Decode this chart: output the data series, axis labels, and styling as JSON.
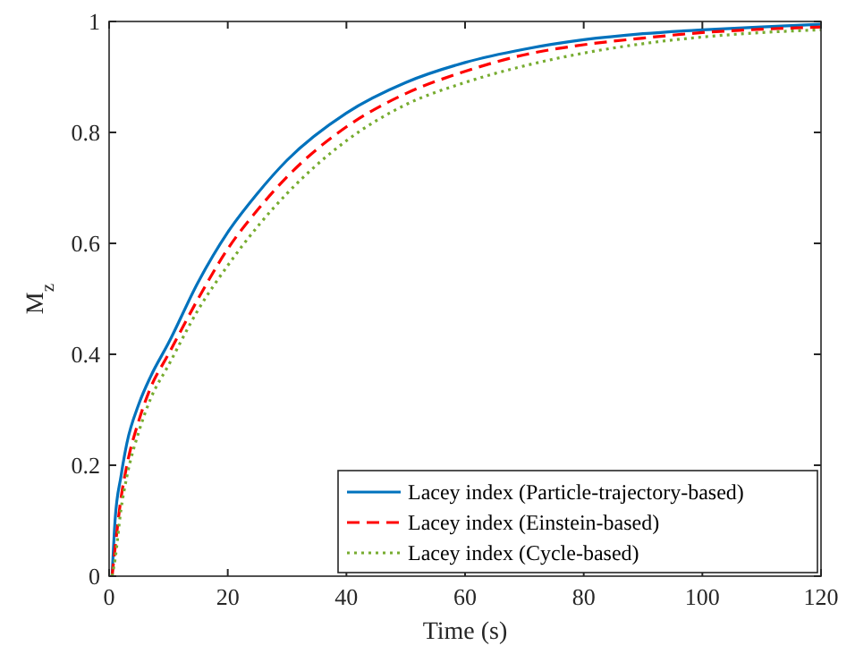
{
  "chart_data": {
    "type": "line",
    "xlabel": "Time (s)",
    "ylabel": "M$_{z}$",
    "x": [
      0.5,
      1,
      2,
      3,
      5,
      7,
      10,
      15,
      20,
      25,
      30,
      40,
      50,
      60,
      70,
      80,
      90,
      100,
      110,
      120
    ],
    "xlim": [
      0,
      120
    ],
    "ylim": [
      0,
      1
    ],
    "xticks": [
      0,
      20,
      40,
      60,
      80,
      100,
      120
    ],
    "yticks": [
      0,
      0.2,
      0.4,
      0.6,
      0.8,
      1
    ],
    "grid": false,
    "legend": "bottom right",
    "series": [
      {
        "name": "Lacey index (Particle-trajectory-based)",
        "color": "#0072bd",
        "line_style": "solid",
        "values": [
          0,
          0.1,
          0.18,
          0.24,
          0.31,
          0.36,
          0.42,
          0.53,
          0.62,
          0.69,
          0.75,
          0.835,
          0.89,
          0.926,
          0.95,
          0.967,
          0.978,
          0.985,
          0.99,
          0.995
        ]
      },
      {
        "name": "Lacey index (Einstein-based)",
        "color": "#ff0000",
        "line_style": "dashed",
        "values": [
          0,
          0.05,
          0.14,
          0.2,
          0.28,
          0.34,
          0.4,
          0.5,
          0.59,
          0.66,
          0.72,
          0.81,
          0.87,
          0.91,
          0.94,
          0.958,
          0.97,
          0.98,
          0.986,
          0.99
        ]
      },
      {
        "name": "Lacey index (Cycle-based)",
        "color": "#77ac30",
        "line_style": "dotted",
        "values": [
          0,
          0.03,
          0.12,
          0.18,
          0.26,
          0.32,
          0.38,
          0.48,
          0.56,
          0.63,
          0.69,
          0.785,
          0.85,
          0.89,
          0.92,
          0.943,
          0.96,
          0.972,
          0.98,
          0.985
        ]
      }
    ]
  }
}
